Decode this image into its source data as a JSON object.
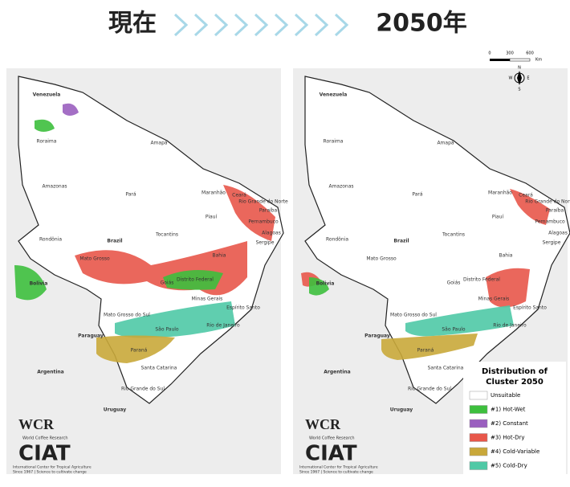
{
  "header": {
    "left_title": "現在",
    "right_title": "2050年"
  },
  "places": [
    "Venezuela",
    "Roraima",
    "Amapá",
    "Amazonas",
    "Pará",
    "Maranhão",
    "Ceará",
    "Rio Grande do Norte",
    "Piauí",
    "Paraíba",
    "Pernambuco",
    "Alagoas",
    "Sergipe",
    "Bahia",
    "Tocantins",
    "Rondônia",
    "Brazil",
    "Mato Grosso",
    "Bolivia",
    "Goiás",
    "Distrito Federal",
    "Minas Gerais",
    "Espírito Santo",
    "Mato Grosso do Sul",
    "São Paulo",
    "Rio de Janeiro",
    "Paraguay",
    "Paraná",
    "Santa Catarina",
    "Rio Grande do Sul",
    "Argentina",
    "Uruguay"
  ],
  "legend": {
    "title_line1": "Distribution of",
    "title_line2": "Cluster 2050",
    "items": [
      {
        "label": "Unsuitable",
        "color": "#ffffff"
      },
      {
        "label": "#1) Hot-Wet",
        "color": "#3dbf3d"
      },
      {
        "label": "#2) Constant",
        "color": "#9a5fbf"
      },
      {
        "label": "#3) Hot-Dry",
        "color": "#e8574a"
      },
      {
        "label": "#4) Cold-Variable",
        "color": "#c9a83a"
      },
      {
        "label": "#5) Cold-Dry",
        "color": "#4fc9a6"
      }
    ]
  },
  "scale": {
    "ticks": [
      "0",
      "300",
      "600"
    ],
    "unit": "Km"
  },
  "compass": {
    "n": "N",
    "s": "S",
    "e": "E",
    "w": "W"
  },
  "logos": {
    "wcr": "WCR",
    "wcr_sub": "World Coffee Research",
    "ciat": "CIAT",
    "ciat_sub": "International Center for Tropical Agriculture",
    "ciat_tag": "Since 1967 | Science to cultivate change"
  }
}
